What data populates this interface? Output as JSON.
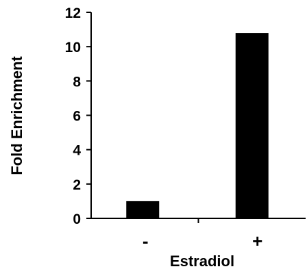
{
  "chart_data": {
    "type": "bar",
    "categories": [
      "-",
      "+"
    ],
    "values": [
      1,
      10.8
    ],
    "xlabel": "Estradiol",
    "ylabel": "Fold Enrichment",
    "ylim": [
      0,
      12
    ],
    "yticks": [
      "0",
      "2",
      "4",
      "6",
      "8",
      "10",
      "12"
    ],
    "grid": false,
    "bar_color": "#000000"
  }
}
